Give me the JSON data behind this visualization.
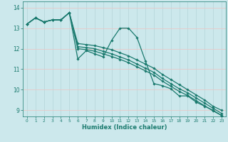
{
  "xlabel": "Humidex (Indice chaleur)",
  "xlim": [
    -0.5,
    23.5
  ],
  "ylim": [
    8.7,
    14.3
  ],
  "xticks": [
    0,
    1,
    2,
    3,
    4,
    5,
    6,
    7,
    8,
    9,
    10,
    11,
    12,
    13,
    14,
    15,
    16,
    17,
    18,
    19,
    20,
    21,
    22,
    23
  ],
  "yticks": [
    9,
    10,
    11,
    12,
    13,
    14
  ],
  "bg_color": "#cce8ec",
  "hgrid_color": "#e8c8c8",
  "vgrid_color": "#b8d8dc",
  "line_color": "#1a7a6e",
  "line1_y": [
    13.2,
    13.5,
    13.3,
    13.4,
    13.4,
    13.75,
    11.5,
    11.9,
    11.75,
    11.6,
    12.4,
    13.0,
    13.0,
    12.55,
    11.4,
    10.3,
    10.2,
    10.05,
    9.7,
    9.7,
    9.4,
    9.2,
    9.0,
    8.75
  ],
  "line2_y": [
    13.2,
    13.5,
    13.3,
    13.4,
    13.4,
    13.75,
    12.25,
    12.2,
    12.15,
    12.05,
    11.95,
    11.8,
    11.65,
    11.45,
    11.25,
    11.05,
    10.75,
    10.5,
    10.25,
    10.0,
    9.75,
    9.5,
    9.2,
    9.0
  ],
  "line3_y": [
    13.2,
    13.5,
    13.3,
    13.4,
    13.4,
    13.75,
    12.1,
    12.05,
    12.0,
    11.87,
    11.75,
    11.6,
    11.45,
    11.25,
    11.05,
    10.85,
    10.55,
    10.3,
    10.05,
    9.85,
    9.6,
    9.35,
    9.1,
    8.85
  ],
  "line4_y": [
    13.2,
    13.5,
    13.3,
    13.4,
    13.4,
    13.75,
    12.0,
    11.95,
    11.88,
    11.75,
    11.62,
    11.48,
    11.32,
    11.12,
    10.92,
    10.72,
    10.42,
    10.17,
    9.92,
    9.72,
    9.47,
    9.22,
    8.97,
    8.75
  ]
}
